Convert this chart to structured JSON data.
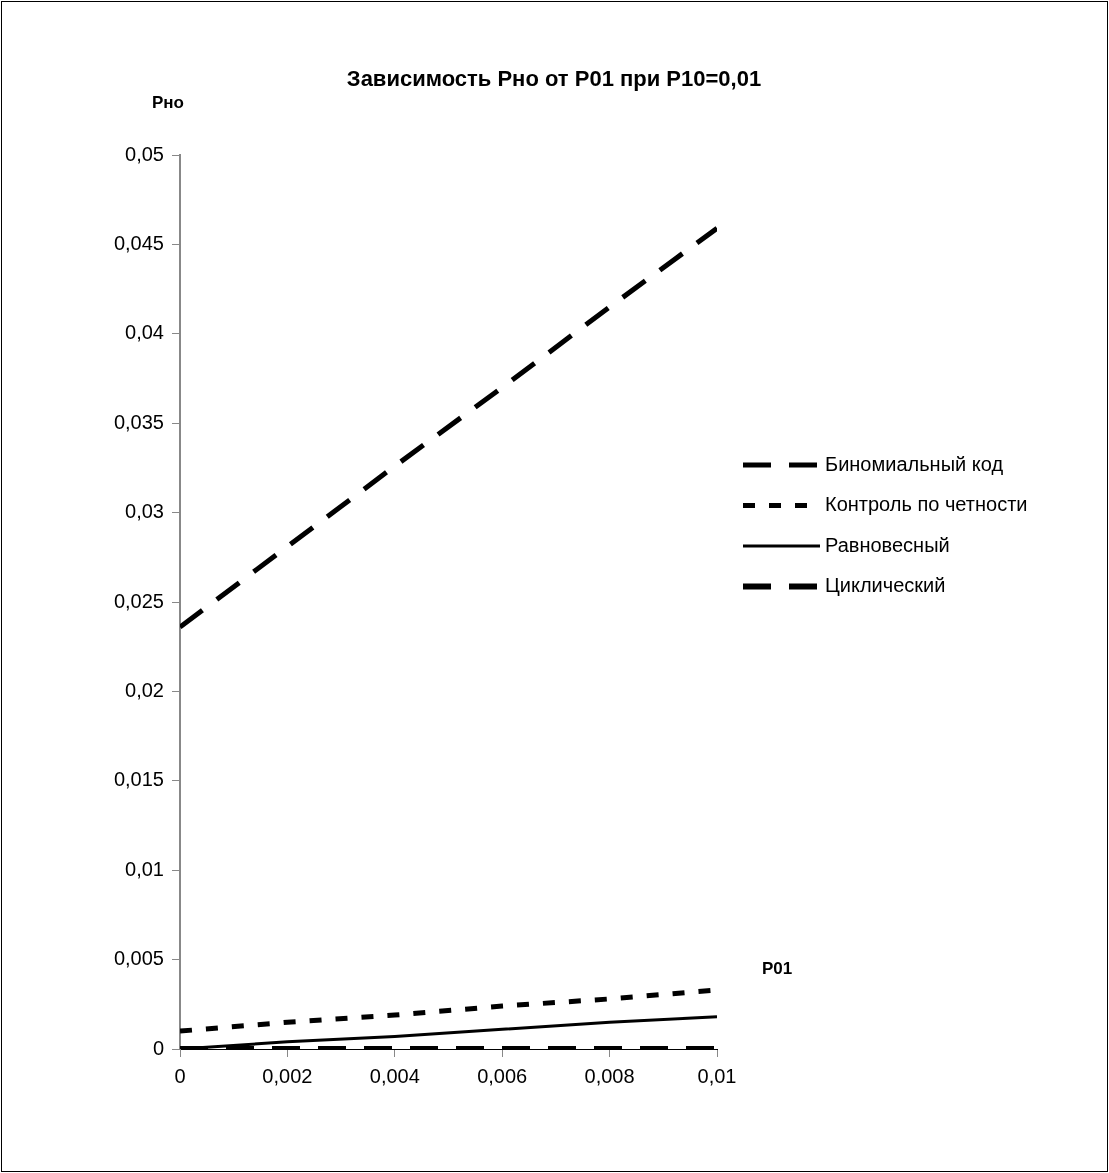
{
  "chart_data": {
    "type": "line",
    "title": "Зависимость Рно от Р01 при Р10=0,01",
    "xlabel": "Р01",
    "ylabel": "Рно",
    "x": [
      0,
      0.002,
      0.004,
      0.006,
      0.008,
      0.01
    ],
    "series": [
      {
        "name": "Биномиальный код",
        "color": "#000000",
        "line_style": "dashed",
        "values": [
          0.0236,
          0.0281,
          0.0326,
          0.037,
          0.0415,
          0.0459
        ]
      },
      {
        "name": "Контроль по четности",
        "color": "#000000",
        "line_style": "dotted",
        "values": [
          0.001,
          0.0015,
          0.0019,
          0.0024,
          0.0028,
          0.0033
        ]
      },
      {
        "name": "Равновесный",
        "color": "#000000",
        "line_style": "solid",
        "values": [
          0,
          0.0004,
          0.0007,
          0.0011,
          0.0015,
          0.0018
        ]
      },
      {
        "name": "Циклический",
        "color": "#000000",
        "line_style": "dashed",
        "values": [
          0,
          0,
          0,
          0,
          0,
          0
        ]
      }
    ],
    "xlim": [
      0,
      0.01
    ],
    "xticks": [
      {
        "value": 0,
        "label": "0"
      },
      {
        "value": 0.002,
        "label": "0,002"
      },
      {
        "value": 0.004,
        "label": "0,004"
      },
      {
        "value": 0.006,
        "label": "0,006"
      },
      {
        "value": 0.008,
        "label": "0,008"
      },
      {
        "value": 0.01,
        "label": "0,01"
      }
    ],
    "ylim": [
      0,
      0.05
    ],
    "yticks": [
      {
        "value": 0,
        "label": "0"
      },
      {
        "value": 0.005,
        "label": "0,005"
      },
      {
        "value": 0.01,
        "label": "0,01"
      },
      {
        "value": 0.015,
        "label": "0,015"
      },
      {
        "value": 0.02,
        "label": "0,02"
      },
      {
        "value": 0.025,
        "label": "0,025"
      },
      {
        "value": 0.03,
        "label": "0,03"
      },
      {
        "value": 0.035,
        "label": "0,035"
      },
      {
        "value": 0.04,
        "label": "0,04"
      },
      {
        "value": 0.045,
        "label": "0,045"
      },
      {
        "value": 0.05,
        "label": "0,05"
      }
    ],
    "grid": false,
    "legend": "right",
    "marker": "none"
  }
}
